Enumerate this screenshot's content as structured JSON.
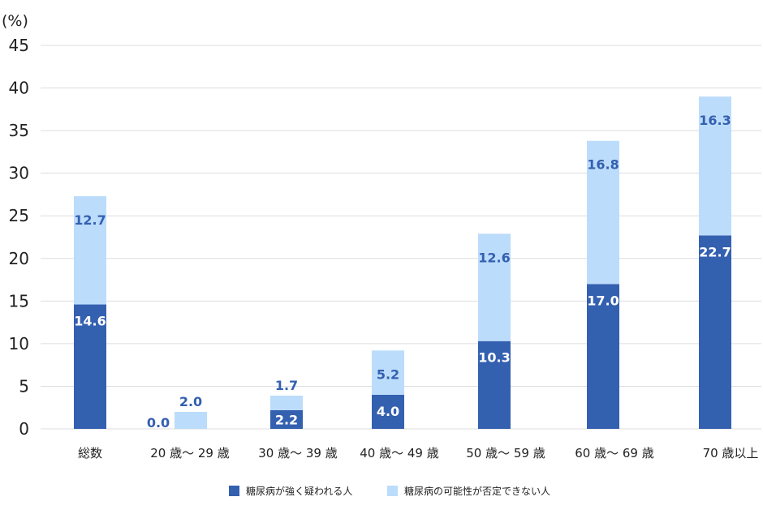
{
  "chart_data": {
    "type": "bar",
    "stacked": true,
    "unit_label": "(%)",
    "categories": [
      "総数",
      "20 歳～ 29 歳",
      "30 歳～ 39 歳",
      "40 歳～ 49 歳",
      "50 歳～ 59 歳",
      "60 歳～ 69 歳",
      "70 歳以上"
    ],
    "series": [
      {
        "name": "糖尿病が強く疑われる人",
        "color": "#3460b0",
        "label_color": "#ffffff",
        "values": [
          14.6,
          0.0,
          2.2,
          4.0,
          10.3,
          17.0,
          22.7
        ],
        "labels": [
          "14.6",
          "0.0",
          "2.2",
          "4.0",
          "10.3",
          "17.0",
          "22.7"
        ]
      },
      {
        "name": "糖尿病の可能性が否定できない人",
        "color": "#bcdcfb",
        "label_color": "#3460b0",
        "values": [
          12.7,
          2.0,
          1.7,
          5.2,
          12.6,
          16.8,
          16.3
        ],
        "labels": [
          "12.7",
          "2.0",
          "1.7",
          "5.2",
          "12.6",
          "16.8",
          "16.3"
        ]
      }
    ],
    "ylim": [
      0,
      45
    ],
    "yticks": [
      0,
      5,
      10,
      15,
      20,
      25,
      30,
      35,
      40,
      45
    ],
    "ytick_labels": [
      "0",
      "5",
      "10",
      "15",
      "20",
      "25",
      "30",
      "35",
      "40",
      "45"
    ],
    "grid": true,
    "legend": "bottom-center"
  }
}
